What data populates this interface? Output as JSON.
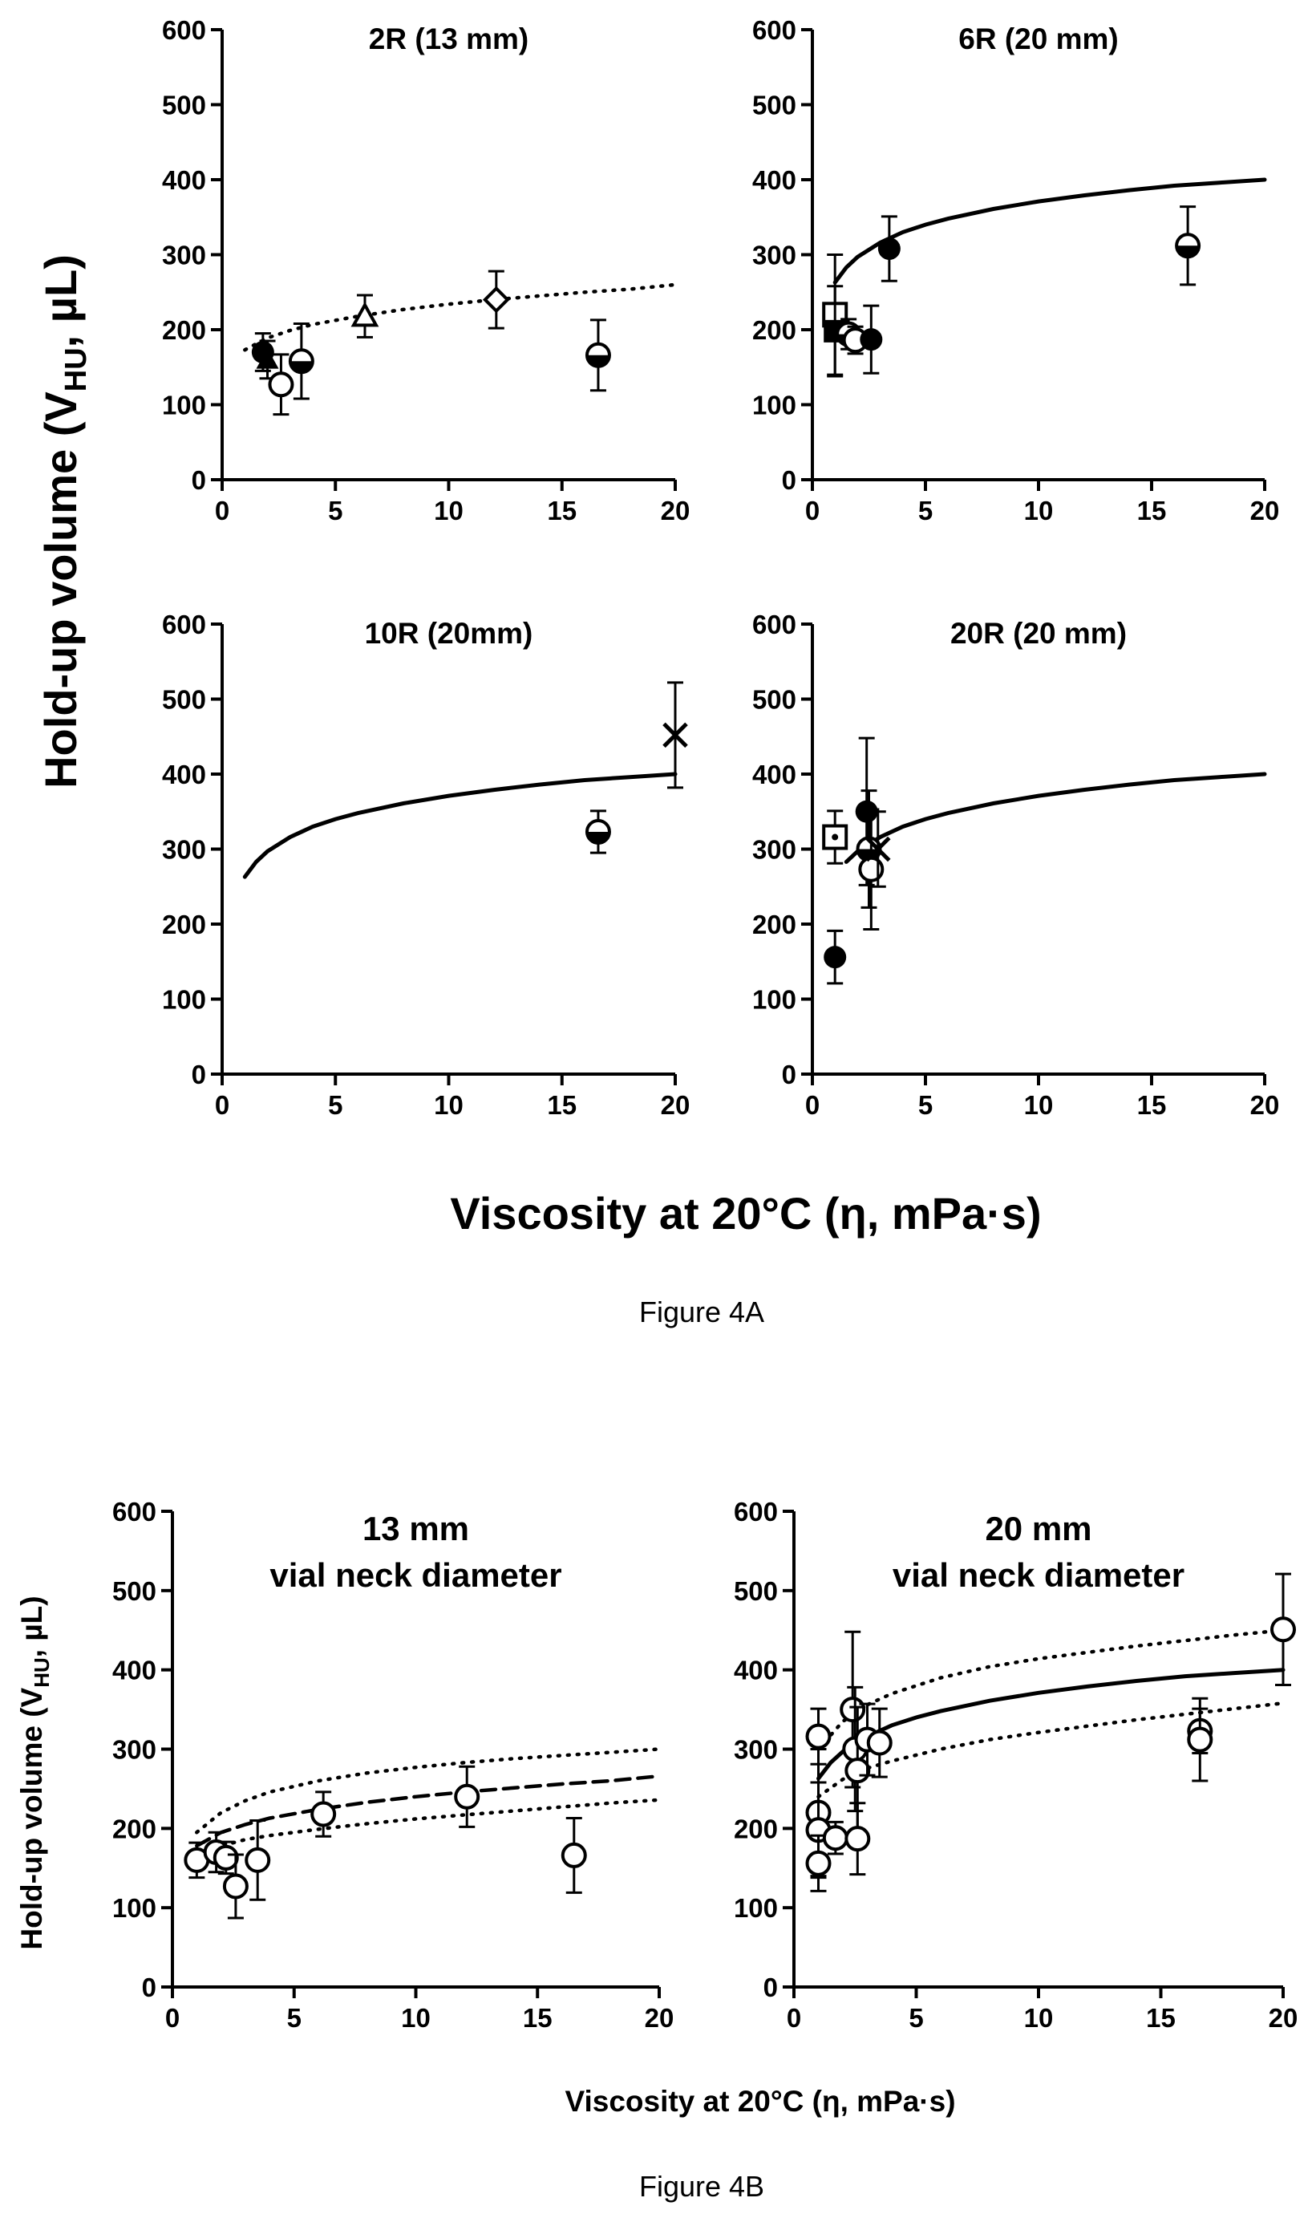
{
  "figure_a": {
    "caption": "Figure 4A",
    "ylabel": "Hold-up volume (V",
    "ylabel_sub": "HU",
    "ylabel_end": ", µL)",
    "xlabel": "Viscosity at 20°C (η, mPa·s)"
  },
  "figure_b": {
    "caption": "Figure 4B",
    "ylabel": "Hold-up volume (V",
    "ylabel_sub": "HU",
    "ylabel_end": ", µL)",
    "xlabel": "Viscosity at 20°C (η, mPa·s)"
  },
  "chart_data": [
    {
      "id": "2r",
      "type": "scatter",
      "title": [
        "2R (13 mm)"
      ],
      "xlim": [
        0,
        20
      ],
      "ylim": [
        0,
        600
      ],
      "xticks": [
        0,
        5,
        10,
        15,
        20
      ],
      "yticks": [
        0,
        100,
        200,
        300,
        400,
        500,
        600
      ],
      "points": [
        {
          "x": 1.8,
          "y": 170,
          "err": 25,
          "marker": "filled-circle"
        },
        {
          "x": 2.0,
          "y": 160,
          "err": 25,
          "marker": "filled-triangle"
        },
        {
          "x": 2.6,
          "y": 127,
          "err": 40,
          "marker": "open-circle"
        },
        {
          "x": 3.5,
          "y": 158,
          "err": 50,
          "marker": "half-circle"
        },
        {
          "x": 6.3,
          "y": 218,
          "err": 28,
          "marker": "open-triangle"
        },
        {
          "x": 12.1,
          "y": 240,
          "err": 38,
          "marker": "open-diamond"
        },
        {
          "x": 16.6,
          "y": 166,
          "err": 47,
          "marker": "half-circle"
        }
      ],
      "curves": [
        {
          "style": "dotted",
          "x": [
            1,
            2,
            3,
            4,
            6,
            8,
            10,
            12,
            14,
            16,
            18,
            20
          ],
          "y": [
            173,
            189,
            199,
            207,
            218,
            227,
            234,
            240,
            245,
            250,
            254,
            260
          ]
        }
      ]
    },
    {
      "id": "6r",
      "type": "scatter",
      "title": [
        "6R (20 mm)"
      ],
      "xlim": [
        0,
        20
      ],
      "ylim": [
        0,
        600
      ],
      "xticks": [
        0,
        5,
        10,
        15,
        20
      ],
      "yticks": [
        0,
        100,
        200,
        300,
        400,
        500,
        600
      ],
      "points": [
        {
          "x": 1.0,
          "y": 220,
          "err": 80,
          "marker": "open-square"
        },
        {
          "x": 1.0,
          "y": 198,
          "err": 60,
          "marker": "filled-square"
        },
        {
          "x": 1.6,
          "y": 194,
          "err": 20,
          "marker": "half-circle"
        },
        {
          "x": 1.9,
          "y": 186,
          "err": 18,
          "marker": "open-circle"
        },
        {
          "x": 2.6,
          "y": 187,
          "err": 45,
          "marker": "filled-circle"
        },
        {
          "x": 3.4,
          "y": 308,
          "err": 43,
          "marker": "filled-circle"
        },
        {
          "x": 16.6,
          "y": 312,
          "err": 52,
          "marker": "half-circle"
        }
      ],
      "curves": [
        {
          "style": "solid",
          "x": [
            1,
            1.5,
            2,
            3,
            4,
            5,
            6,
            8,
            10,
            12,
            14,
            16,
            18,
            20
          ],
          "y": [
            263,
            283,
            297,
            316,
            330,
            340,
            348,
            361,
            371,
            379,
            386,
            392,
            396,
            400
          ]
        }
      ]
    },
    {
      "id": "10r",
      "type": "scatter",
      "title": [
        "10R (20mm)"
      ],
      "xlim": [
        0,
        20
      ],
      "ylim": [
        0,
        600
      ],
      "xticks": [
        0,
        5,
        10,
        15,
        20
      ],
      "yticks": [
        0,
        100,
        200,
        300,
        400,
        500,
        600
      ],
      "points": [
        {
          "x": 16.6,
          "y": 323,
          "err": 28,
          "marker": "half-circle"
        },
        {
          "x": 20.0,
          "y": 452,
          "err": 70,
          "marker": "cross"
        }
      ],
      "curves": [
        {
          "style": "solid",
          "x": [
            1,
            1.5,
            2,
            3,
            4,
            5,
            6,
            8,
            10,
            12,
            14,
            16,
            18,
            20
          ],
          "y": [
            263,
            283,
            297,
            316,
            330,
            340,
            348,
            361,
            371,
            379,
            386,
            392,
            396,
            400
          ]
        }
      ]
    },
    {
      "id": "20r",
      "type": "scatter",
      "title": [
        "20R (20 mm)"
      ],
      "xlim": [
        0,
        20
      ],
      "ylim": [
        0,
        600
      ],
      "xticks": [
        0,
        5,
        10,
        15,
        20
      ],
      "yticks": [
        0,
        100,
        200,
        300,
        400,
        500,
        600
      ],
      "points": [
        {
          "x": 1.0,
          "y": 316,
          "err": 35,
          "marker": "dot-square"
        },
        {
          "x": 1.0,
          "y": 156,
          "err": 35,
          "marker": "filled-circle"
        },
        {
          "x": 2.4,
          "y": 350,
          "err": 98,
          "marker": "filled-circle"
        },
        {
          "x": 2.5,
          "y": 300,
          "err": 78,
          "marker": "half-circle"
        },
        {
          "x": 2.6,
          "y": 273,
          "err": 80,
          "marker": "open-circle"
        },
        {
          "x": 2.9,
          "y": 300,
          "err": 50,
          "marker": "cross"
        }
      ],
      "curves": [
        {
          "style": "solid",
          "x": [
            1.5,
            2,
            3,
            4,
            5,
            6,
            8,
            10,
            12,
            14,
            16,
            18,
            20
          ],
          "y": [
            283,
            297,
            316,
            330,
            340,
            348,
            361,
            371,
            379,
            386,
            392,
            396,
            400
          ]
        }
      ]
    },
    {
      "id": "13mm",
      "type": "scatter",
      "title": [
        "13 mm",
        "vial neck diameter"
      ],
      "xlim": [
        0,
        20
      ],
      "ylim": [
        0,
        600
      ],
      "xticks": [
        0,
        5,
        10,
        15,
        20
      ],
      "yticks": [
        0,
        100,
        200,
        300,
        400,
        500,
        600
      ],
      "points": [
        {
          "x": 1.0,
          "y": 160,
          "err": 22,
          "marker": "open-circle"
        },
        {
          "x": 1.8,
          "y": 170,
          "err": 25,
          "marker": "open-circle"
        },
        {
          "x": 2.2,
          "y": 163,
          "err": 20,
          "marker": "open-circle"
        },
        {
          "x": 2.6,
          "y": 127,
          "err": 40,
          "marker": "open-circle"
        },
        {
          "x": 3.5,
          "y": 160,
          "err": 50,
          "marker": "open-circle"
        },
        {
          "x": 6.2,
          "y": 218,
          "err": 28,
          "marker": "open-circle"
        },
        {
          "x": 12.1,
          "y": 240,
          "err": 38,
          "marker": "open-circle"
        },
        {
          "x": 16.5,
          "y": 166,
          "err": 47,
          "marker": "open-circle"
        }
      ],
      "curves": [
        {
          "style": "dashed",
          "x": [
            1,
            2,
            3,
            4,
            6,
            8,
            10,
            12,
            14,
            16,
            18,
            20
          ],
          "y": [
            178,
            195,
            205,
            213,
            224,
            233,
            240,
            246,
            251,
            256,
            260,
            266
          ]
        },
        {
          "style": "dotted",
          "x": [
            1,
            2,
            3,
            4,
            6,
            8,
            10,
            12,
            14,
            16,
            18,
            20
          ],
          "y": [
            195,
            220,
            235,
            246,
            260,
            270,
            277,
            283,
            288,
            292,
            296,
            300
          ]
        },
        {
          "style": "dotted",
          "x": [
            1,
            2,
            3,
            4,
            6,
            8,
            10,
            12,
            14,
            16,
            18,
            20
          ],
          "y": [
            165,
            178,
            186,
            191,
            199,
            206,
            212,
            217,
            222,
            227,
            232,
            236
          ]
        }
      ]
    },
    {
      "id": "20mm",
      "type": "scatter",
      "title": [
        "20 mm",
        "vial neck diameter"
      ],
      "xlim": [
        0,
        20
      ],
      "ylim": [
        0,
        600
      ],
      "xticks": [
        0,
        5,
        10,
        15,
        20
      ],
      "yticks": [
        0,
        100,
        200,
        300,
        400,
        500,
        600
      ],
      "points": [
        {
          "x": 1.0,
          "y": 316,
          "err": 35,
          "marker": "open-circle"
        },
        {
          "x": 1.0,
          "y": 220,
          "err": 80,
          "marker": "open-circle"
        },
        {
          "x": 1.0,
          "y": 198,
          "err": 60,
          "marker": "open-circle"
        },
        {
          "x": 1.0,
          "y": 156,
          "err": 35,
          "marker": "open-circle"
        },
        {
          "x": 1.7,
          "y": 188,
          "err": 20,
          "marker": "open-circle"
        },
        {
          "x": 2.4,
          "y": 350,
          "err": 98,
          "marker": "open-circle"
        },
        {
          "x": 2.5,
          "y": 300,
          "err": 78,
          "marker": "open-circle"
        },
        {
          "x": 2.6,
          "y": 273,
          "err": 80,
          "marker": "open-circle"
        },
        {
          "x": 2.6,
          "y": 187,
          "err": 45,
          "marker": "open-circle"
        },
        {
          "x": 3.0,
          "y": 312,
          "err": 45,
          "marker": "open-circle"
        },
        {
          "x": 3.5,
          "y": 308,
          "err": 43,
          "marker": "open-circle"
        },
        {
          "x": 16.6,
          "y": 323,
          "err": 28,
          "marker": "open-circle"
        },
        {
          "x": 16.6,
          "y": 312,
          "err": 52,
          "marker": "open-circle"
        },
        {
          "x": 20.0,
          "y": 451,
          "err": 70,
          "marker": "open-circle"
        }
      ],
      "curves": [
        {
          "style": "solid",
          "x": [
            1,
            1.5,
            2,
            3,
            4,
            5,
            6,
            8,
            10,
            12,
            14,
            16,
            18,
            20
          ],
          "y": [
            263,
            283,
            297,
            316,
            330,
            340,
            348,
            361,
            371,
            379,
            386,
            392,
            396,
            400
          ]
        },
        {
          "style": "dotted",
          "x": [
            1,
            2,
            3,
            4,
            6,
            8,
            10,
            12,
            14,
            16,
            18,
            20
          ],
          "y": [
            300,
            335,
            356,
            370,
            390,
            404,
            414,
            422,
            430,
            437,
            444,
            450
          ]
        },
        {
          "style": "dotted",
          "x": [
            1,
            2,
            3,
            4,
            6,
            8,
            10,
            12,
            14,
            16,
            18,
            20
          ],
          "y": [
            240,
            262,
            276,
            285,
            300,
            312,
            321,
            329,
            337,
            344,
            351,
            358
          ]
        }
      ]
    }
  ]
}
